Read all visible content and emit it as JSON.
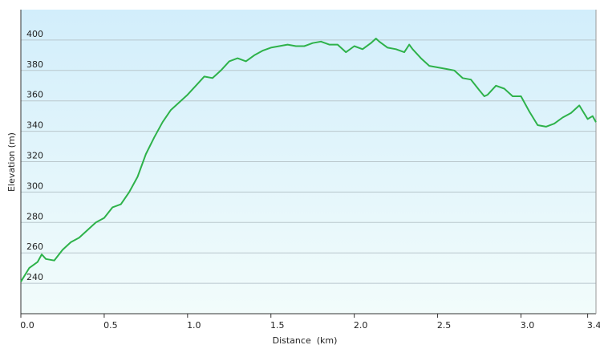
{
  "chart_data": {
    "type": "line",
    "x_label": "Distance  (km)",
    "y_label": "Elevation (m)",
    "x": [
      0,
      0.05,
      0.1,
      0.125,
      0.15,
      0.2,
      0.25,
      0.3,
      0.35,
      0.4,
      0.45,
      0.5,
      0.55,
      0.6,
      0.65,
      0.7,
      0.75,
      0.8,
      0.85,
      0.9,
      0.95,
      1.0,
      1.05,
      1.1,
      1.15,
      1.2,
      1.25,
      1.3,
      1.35,
      1.4,
      1.45,
      1.5,
      1.55,
      1.6,
      1.65,
      1.7,
      1.75,
      1.8,
      1.85,
      1.9,
      1.95,
      2.0,
      2.05,
      2.1,
      2.13,
      2.15,
      2.2,
      2.25,
      2.3,
      2.33,
      2.35,
      2.4,
      2.45,
      2.5,
      2.55,
      2.6,
      2.65,
      2.7,
      2.75,
      2.78,
      2.8,
      2.85,
      2.9,
      2.95,
      3.0,
      3.05,
      3.1,
      3.15,
      3.2,
      3.25,
      3.3,
      3.35,
      3.4,
      3.43,
      3.45
    ],
    "values": [
      241,
      250,
      254,
      259,
      256,
      255,
      262,
      267,
      270,
      275,
      280,
      283,
      290,
      292,
      300,
      310,
      325,
      336,
      346,
      354,
      359,
      364,
      370,
      376,
      375,
      380,
      386,
      388,
      386,
      390,
      393,
      395,
      396,
      397,
      396,
      396,
      398,
      399,
      397,
      397,
      392,
      396,
      394,
      398,
      401,
      399,
      395,
      394,
      392,
      397,
      394,
      388,
      383,
      382,
      381,
      380,
      375,
      374,
      367,
      363,
      364,
      370,
      368,
      363,
      363,
      353,
      344,
      343,
      345,
      349,
      352,
      357,
      348,
      350,
      346
    ],
    "color": "#2eb24a",
    "xlim": [
      0,
      3.45
    ],
    "ylim": [
      220,
      420
    ],
    "xticks": [
      {
        "value": 0,
        "label": "0.0"
      },
      0.5,
      {
        "value": 1,
        "label": "1.0"
      },
      1.5,
      {
        "value": 2,
        "label": "2.0"
      },
      2.5,
      {
        "value": 3,
        "label": "3.0"
      },
      3.4
    ],
    "yticks": [
      240,
      260,
      280,
      300,
      320,
      340,
      360,
      380,
      400
    ],
    "grid": true
  }
}
